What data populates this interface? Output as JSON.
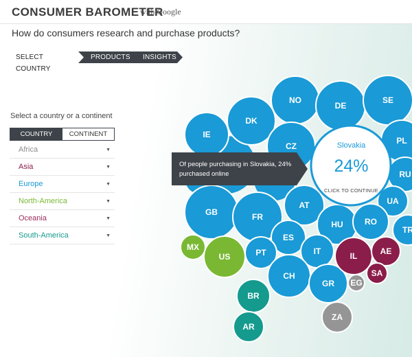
{
  "header": {
    "title": "CONSUMER BAROMETER",
    "subtitle": "with Google"
  },
  "question": "How do consumers research and purchase products?",
  "steps": [
    "SELECT COUNTRY",
    "PRODUCTS",
    "INSIGHTS"
  ],
  "sidebar": {
    "label": "Select a country or a continent",
    "toggle": [
      "COUNTRY",
      "CONTINENT"
    ],
    "continents": [
      {
        "name": "Africa",
        "color": "#8c8c8c"
      },
      {
        "name": "Asia",
        "color": "#8b1d4a"
      },
      {
        "name": "Europe",
        "color": "#1a9ad6"
      },
      {
        "name": "North-America",
        "color": "#7ab833"
      },
      {
        "name": "Oceania",
        "color": "#9b2a5a"
      },
      {
        "name": "South-America",
        "color": "#159a8e"
      }
    ]
  },
  "colors": {
    "Europe": "#1a9ad6",
    "Asia": "#8b1d4a",
    "NorthAmerica": "#7ab833",
    "SouthAmerica": "#159a8e",
    "Africa": "#959595",
    "dark": "#3d4349"
  },
  "bubbles": [
    {
      "code": "NO",
      "continent": "Europe"
    },
    {
      "code": "DE",
      "continent": "Europe"
    },
    {
      "code": "SE",
      "continent": "Europe"
    },
    {
      "code": "DK",
      "continent": "Europe"
    },
    {
      "code": "IE",
      "continent": "Europe"
    },
    {
      "code": "CZ",
      "continent": "Europe"
    },
    {
      "code": "PL",
      "continent": "Europe"
    },
    {
      "code": "RU",
      "continent": "Europe"
    },
    {
      "code": "UA",
      "continent": "Europe"
    },
    {
      "code": "TR",
      "continent": "Europe"
    },
    {
      "code": "GB",
      "continent": "Europe"
    },
    {
      "code": "FR",
      "continent": "Europe"
    },
    {
      "code": "AT",
      "continent": "Europe"
    },
    {
      "code": "HU",
      "continent": "Europe"
    },
    {
      "code": "RO",
      "continent": "Europe"
    },
    {
      "code": "ES",
      "continent": "Europe"
    },
    {
      "code": "PT",
      "continent": "Europe"
    },
    {
      "code": "IT",
      "continent": "Europe"
    },
    {
      "code": "CH",
      "continent": "Europe"
    },
    {
      "code": "GR",
      "continent": "Europe"
    },
    {
      "code": "MX",
      "continent": "NorthAmerica"
    },
    {
      "code": "US",
      "continent": "NorthAmerica"
    },
    {
      "code": "IL",
      "continent": "Asia"
    },
    {
      "code": "AE",
      "continent": "Asia"
    },
    {
      "code": "SA",
      "continent": "Asia"
    },
    {
      "code": "EG",
      "continent": "Africa"
    },
    {
      "code": "ZA",
      "continent": "Africa"
    },
    {
      "code": "BR",
      "continent": "SouthAmerica"
    },
    {
      "code": "AR",
      "continent": "SouthAmerica"
    }
  ],
  "tooltip": {
    "text": "Of people purchasing in Slovakia, 24% purchased online"
  },
  "selected": {
    "country": "Slovakia",
    "percent": "24%",
    "cta": "CLICK TO CONTINUE"
  }
}
